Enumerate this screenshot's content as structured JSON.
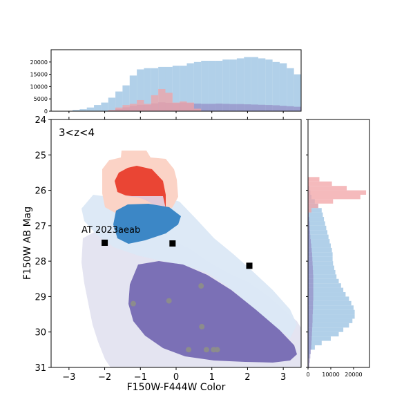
{
  "chart_data": {
    "type": "scatter",
    "annotation": "3<z<4",
    "xlabel": "F150W-F444W Color",
    "ylabel": "F150W AB Mag",
    "xlim": [
      -3.5,
      3.5
    ],
    "ylim": [
      31,
      24
    ],
    "x_ticks": [
      "−3",
      "−2",
      "−1",
      "0",
      "1",
      "2",
      "3"
    ],
    "x_tick_values": [
      -3,
      -2,
      -1,
      0,
      1,
      2,
      3
    ],
    "y_ticks": [
      "24",
      "25",
      "26",
      "27",
      "28",
      "29",
      "30",
      "31"
    ],
    "y_tick_values": [
      24,
      25,
      26,
      27,
      28,
      29,
      30,
      31
    ],
    "label_AT": "AT 2023aeab",
    "colors": {
      "red_light": "#fbd3c6",
      "red_dark": "#ea4534",
      "blue_light": "#dbe8f6",
      "blue_dark": "#3c87c6",
      "purple_light": "#e4e4f1",
      "purple_dark": "#7b70b6",
      "hist_blue": "#9ec4e3",
      "hist_red": "#f2a3a5",
      "hist_purple": "#8d81c0"
    },
    "squares": [
      {
        "x": -2.0,
        "y": 27.48
      },
      {
        "x": -0.1,
        "y": 27.5
      },
      {
        "x": 2.05,
        "y": 28.13
      }
    ],
    "grey_points": [
      {
        "x": -1.2,
        "y": 29.2
      },
      {
        "x": -0.2,
        "y": 29.12
      },
      {
        "x": 0.7,
        "y": 28.7
      },
      {
        "x": 0.72,
        "y": 29.85
      },
      {
        "x": 0.35,
        "y": 30.5
      },
      {
        "x": 0.85,
        "y": 30.5
      },
      {
        "x": 1.05,
        "y": 30.5
      },
      {
        "x": 1.15,
        "y": 30.5
      }
    ],
    "top_hist": {
      "ylim": [
        0,
        25000
      ],
      "y_ticks": [
        "0",
        "5000",
        "10000",
        "15000",
        "20000"
      ],
      "y_tick_values": [
        0,
        5000,
        10000,
        15000,
        20000
      ],
      "bin_edges_start": -3.5,
      "bin_width": 0.2,
      "blue_values": [
        0,
        0,
        0,
        500,
        800,
        1500,
        2500,
        3500,
        5500,
        8000,
        10500,
        14500,
        17000,
        17500,
        17500,
        18000,
        18000,
        18500,
        18500,
        19500,
        20000,
        20500,
        20500,
        20500,
        21000,
        21000,
        21500,
        22000,
        22000,
        21500,
        21000,
        20000,
        19500,
        17500,
        15000,
        13000,
        10500,
        8000,
        6000,
        4000
      ],
      "red_values": [
        0,
        0,
        0,
        0,
        0,
        0,
        0,
        0,
        500,
        1500,
        2500,
        3000,
        4500,
        3000,
        6500,
        9000,
        7500,
        3500,
        4000,
        3500,
        1000,
        0,
        0,
        0,
        0,
        0,
        0,
        0,
        0,
        0,
        0,
        0,
        0,
        0,
        0,
        0,
        0,
        0,
        0,
        0
      ],
      "purple_values": [
        0,
        0,
        0,
        0,
        0,
        0,
        0,
        0,
        300,
        900,
        1600,
        2200,
        2600,
        2600,
        3200,
        3600,
        3400,
        3300,
        3500,
        3300,
        3100,
        3000,
        3000,
        3100,
        3000,
        2900,
        2900,
        2800,
        2700,
        2600,
        2500,
        2400,
        2200,
        2000,
        1800,
        1500,
        1200,
        900,
        600,
        300
      ]
    },
    "right_hist": {
      "xlim": [
        0,
        27000
      ],
      "x_ticks": [
        "0",
        "10000",
        "20000"
      ],
      "x_tick_values": [
        0,
        10000,
        20000
      ],
      "bin_edges_start": 25.5,
      "bin_width": 0.125,
      "blue_values": [
        0,
        0,
        0,
        500,
        1000,
        1500,
        3000,
        4500,
        6000,
        6500,
        7000,
        7500,
        8000,
        8500,
        9000,
        9500,
        10000,
        10500,
        10800,
        10800,
        11000,
        11500,
        12000,
        12500,
        13500,
        14500,
        15500,
        16500,
        18000,
        19000,
        20000,
        20500,
        20500,
        19500,
        18000,
        15500,
        13500,
        10000,
        6000,
        3000,
        1000,
        500,
        0,
        0
      ],
      "red_values": [
        0,
        5000,
        10500,
        17000,
        25500,
        23000,
        11000,
        4500,
        1500,
        200,
        0,
        0,
        0,
        0,
        0,
        0,
        0,
        0,
        0,
        0,
        0,
        0,
        0,
        0,
        0,
        0,
        0,
        0,
        0,
        0,
        0,
        0,
        0,
        0,
        0,
        0,
        0,
        0,
        0,
        0,
        0,
        0,
        0,
        0
      ],
      "purple_values": [
        0,
        0,
        0,
        0,
        0,
        0,
        0,
        0,
        200,
        300,
        500,
        700,
        800,
        900,
        1000,
        1200,
        1400,
        1600,
        1800,
        1900,
        2000,
        2100,
        2200,
        2300,
        2300,
        2300,
        2300,
        2300,
        2300,
        2200,
        2200,
        2100,
        2000,
        2000,
        1900,
        1800,
        1700,
        1600,
        1500,
        1400,
        1200,
        1000,
        800,
        600
      ]
    }
  }
}
